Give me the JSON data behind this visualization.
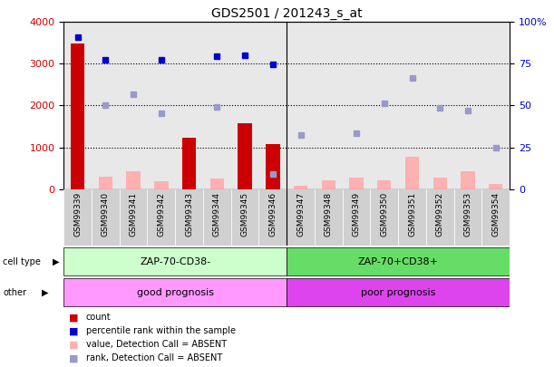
{
  "title": "GDS2501 / 201243_s_at",
  "samples": [
    "GSM99339",
    "GSM99340",
    "GSM99341",
    "GSM99342",
    "GSM99343",
    "GSM99344",
    "GSM99345",
    "GSM99346",
    "GSM99347",
    "GSM99348",
    "GSM99349",
    "GSM99350",
    "GSM99351",
    "GSM99352",
    "GSM99353",
    "GSM99354"
  ],
  "count_values": [
    3480,
    0,
    0,
    0,
    1220,
    0,
    1580,
    1080,
    0,
    0,
    0,
    0,
    0,
    0,
    0,
    0
  ],
  "count_absent": [
    0,
    290,
    430,
    180,
    0,
    250,
    0,
    0,
    80,
    200,
    270,
    200,
    780,
    270,
    430,
    120
  ],
  "rank_present": [
    3640,
    3100,
    0,
    3100,
    0,
    3180,
    3200,
    2980,
    0,
    0,
    0,
    0,
    0,
    0,
    0,
    0
  ],
  "rank_absent": [
    0,
    2010,
    2270,
    1810,
    0,
    1960,
    0,
    350,
    1290,
    0,
    1330,
    2060,
    2650,
    1950,
    1870,
    1000
  ],
  "ylim_left": [
    0,
    4000
  ],
  "ylim_right": [
    0,
    100
  ],
  "yticks_left": [
    0,
    1000,
    2000,
    3000,
    4000
  ],
  "yticks_right": [
    0,
    25,
    50,
    75,
    100
  ],
  "cell_type_labels": [
    "ZAP-70-CD38-",
    "ZAP-70+CD38+"
  ],
  "cell_type_colors_light": [
    "#CCFFCC",
    "#66DD66"
  ],
  "cell_type_ranges": [
    [
      0,
      8
    ],
    [
      8,
      16
    ]
  ],
  "other_labels": [
    "good prognosis",
    "poor prognosis"
  ],
  "other_colors": [
    "#FF99FF",
    "#DD44EE"
  ],
  "other_ranges": [
    [
      0,
      8
    ],
    [
      8,
      16
    ]
  ],
  "bar_color_red": "#CC0000",
  "bar_color_pink": "#FFB0B0",
  "scatter_color_blue": "#0000CC",
  "scatter_color_lightblue": "#9999CC",
  "bg_color": "#E8E8E8",
  "grid_color": "black",
  "left_axis_color": "#CC0000",
  "right_axis_color": "#0000CC",
  "legend_items": [
    {
      "color": "#CC0000",
      "label": "count"
    },
    {
      "color": "#0000CC",
      "label": "percentile rank within the sample"
    },
    {
      "color": "#FFB0B0",
      "label": "value, Detection Call = ABSENT"
    },
    {
      "color": "#9999CC",
      "label": "rank, Detection Call = ABSENT"
    }
  ]
}
